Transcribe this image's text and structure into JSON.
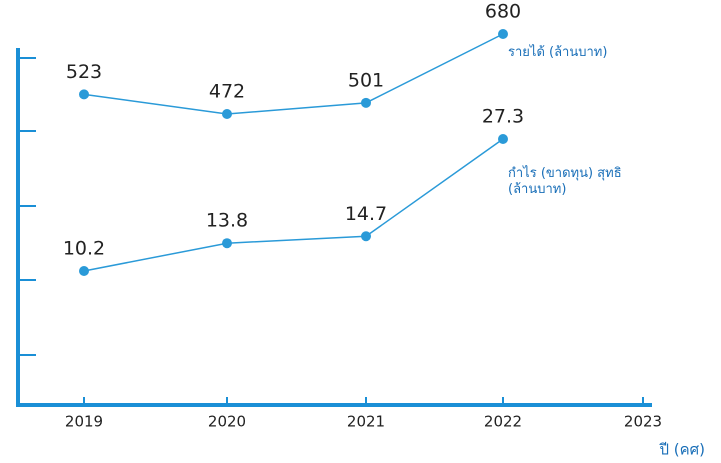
{
  "chart_data": {
    "type": "line",
    "categories": [
      "2019",
      "2020",
      "2021",
      "2022",
      "2023"
    ],
    "x_label": "ปี (คศ)",
    "series": [
      {
        "name": "รายได้ (ล้านบาท)",
        "color": "#2a9ad8",
        "values": [
          523,
          472,
          501,
          680,
          null
        ]
      },
      {
        "name": "กำไร (ขาดทุน) สุทธิ (ล้านบาท)",
        "color": "#2a9ad8",
        "values": [
          10.2,
          13.8,
          14.7,
          27.3,
          null
        ]
      }
    ]
  }
}
